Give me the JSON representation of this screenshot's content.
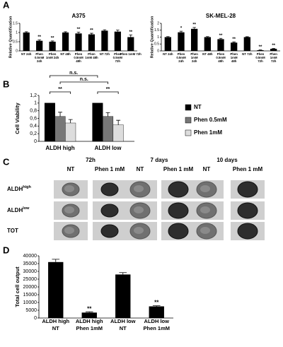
{
  "panel_labels": [
    "A",
    "B",
    "C",
    "D"
  ],
  "chart_data": [
    {
      "type": "bar",
      "title": "A375",
      "y_label": "Relative Quantification",
      "categories": [
        "NT 24h",
        [
          "Phen",
          "0.5mM",
          "24h"
        ],
        [
          "Phen",
          "1mM 24h"
        ],
        "NT 48h",
        [
          "Phen",
          "0.5mM",
          "48h"
        ],
        [
          "Phen",
          "1mM 48h"
        ],
        "NT 72h",
        [
          "Phen",
          "0.5mM",
          "72h"
        ],
        [
          "Phen 1mM 72h"
        ]
      ],
      "values": [
        1,
        0.55,
        0.5,
        1,
        0.95,
        0.9,
        1.1,
        1.05,
        0.75
      ],
      "errors": [
        0.04,
        0.05,
        0.04,
        0.04,
        0.07,
        0.06,
        0.05,
        0.08,
        0.12
      ],
      "significance": [
        null,
        "**",
        "**",
        null,
        "**",
        "**",
        null,
        null,
        "**"
      ],
      "color": "#000000",
      "ylim": [
        0,
        1.5
      ],
      "yticks": [
        0,
        0.5,
        1,
        1.5
      ]
    },
    {
      "type": "bar",
      "title": "SK-MEL-28",
      "y_label": "Relative Quantification",
      "categories": [
        "NT 24h",
        [
          "Phen",
          "0.5mM",
          "24h"
        ],
        [
          "Phen",
          "1mM",
          "24h"
        ],
        "NT 48h",
        [
          "Phen",
          "0.5mM",
          "48h"
        ],
        [
          "Phen",
          "1mM",
          "48h"
        ],
        "NT 72h",
        [
          "Phen",
          "0.5mM",
          "72h"
        ],
        [
          "Phen",
          "1mM",
          "72h"
        ]
      ],
      "values": [
        1,
        1.35,
        1.6,
        1,
        0.85,
        0.6,
        1,
        0.05,
        0.15
      ],
      "errors": [
        0.04,
        0.08,
        0.1,
        0.04,
        0.06,
        0.05,
        0.03,
        0.02,
        0.03
      ],
      "significance": [
        null,
        "*",
        "**",
        null,
        "**",
        "**",
        null,
        "**",
        "**"
      ],
      "color": "#000000",
      "ylim": [
        0,
        2
      ],
      "yticks": [
        0,
        0.5,
        1,
        1.5,
        2
      ]
    },
    {
      "type": "grouped_bar",
      "y_label": "Cell Viability",
      "categories": [
        "ALDH high",
        "ALDH low"
      ],
      "series": [
        {
          "name": "NT",
          "color": "#000000",
          "values": [
            1,
            1
          ]
        },
        {
          "name": "Phen 0.5mM",
          "color": "#777777",
          "values": [
            0.65,
            0.65
          ],
          "errors": [
            0.11,
            0.1
          ]
        },
        {
          "name": "Phen 1mM",
          "color": "#dddddd",
          "values": [
            0.48,
            0.43
          ],
          "errors": [
            0.09,
            0.12
          ]
        }
      ],
      "annotations": [
        "n.s.",
        "n.s.",
        "**",
        "**"
      ],
      "ylim": [
        0,
        1.2
      ],
      "yticks": [
        0,
        {
          "value": 0.2,
          "label": "0,2"
        },
        {
          "value": 0.4,
          "label": "0,4"
        },
        {
          "value": 0.6,
          "label": "0,6"
        },
        {
          "value": 0.8,
          "label": "0,8"
        },
        1,
        {
          "value": 1.2,
          "label": "1,2"
        }
      ]
    },
    {
      "type": "bar",
      "y_label": "Total cell output",
      "categories": [
        [
          "ALDH high",
          "NT"
        ],
        [
          "ALDH high",
          "Phen 1mM"
        ],
        [
          "ALDH low",
          "NT"
        ],
        [
          "ALDH low",
          "Phen 1mM"
        ]
      ],
      "values": [
        36000,
        3500,
        28000,
        7500
      ],
      "errors": [
        1800,
        500,
        1200,
        400
      ],
      "significance": [
        null,
        "**",
        null,
        "**"
      ],
      "color": "#000000",
      "ylim": [
        0,
        40000
      ],
      "yticks": [
        0,
        5000,
        10000,
        15000,
        20000,
        25000,
        30000,
        35000,
        40000
      ]
    }
  ],
  "panel_c": {
    "column_groups": [
      "72h",
      "7 days",
      "10 days"
    ],
    "columns": [
      "NT",
      "Phen 1 mM",
      "NT",
      "Phen 1 mM",
      "NT",
      "Phen 1 mM"
    ],
    "rows": [
      {
        "base": "ALDH",
        "sup": "high"
      },
      {
        "base": "ALDH",
        "sup": "low"
      },
      {
        "base": "TOT"
      }
    ]
  }
}
